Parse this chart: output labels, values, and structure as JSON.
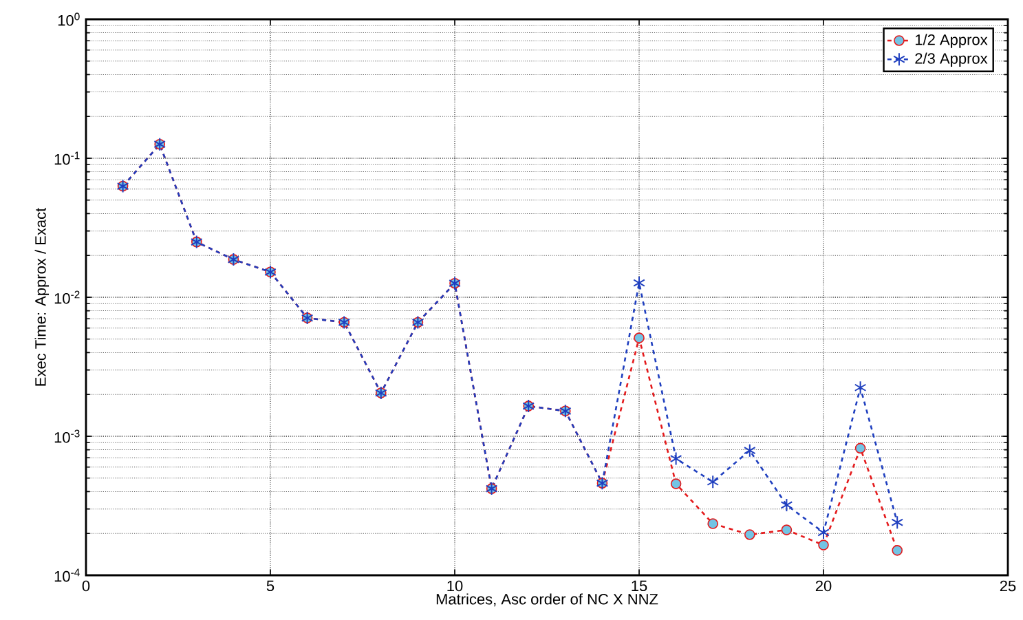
{
  "chart_data": {
    "type": "line",
    "xlabel": "Matrices, Asc order of NC X NNZ",
    "ylabel": "Exec Time: Approx / Exact",
    "log": "y",
    "grid": true,
    "legend": "top right",
    "x": [
      1,
      2,
      3,
      4,
      5,
      6,
      7,
      8,
      9,
      10,
      11,
      12,
      13,
      14,
      15,
      16,
      17,
      18,
      19,
      20,
      21,
      22
    ],
    "xlim": [
      0,
      25
    ],
    "xticks": [
      0,
      5,
      10,
      15,
      20,
      25
    ],
    "ylim": [
      0.0001,
      1
    ],
    "yticks": [
      {
        "value": 0.0001,
        "label": "10$^{-4}$"
      },
      {
        "value": 0.001,
        "label": "10$^{-3}$"
      },
      {
        "value": 0.01,
        "label": "10$^{-2}$"
      },
      {
        "value": 0.1,
        "label": "10$^{-1}$"
      },
      {
        "value": 1,
        "label": "10$^{0}$"
      }
    ],
    "series": [
      {
        "name": "1/2 Approx",
        "color": "#e41a1c",
        "marker": "circle",
        "line_style": "dashed",
        "values": [
          0.063,
          0.126,
          0.025,
          0.0187,
          0.0152,
          0.0071,
          0.0066,
          0.00205,
          0.0066,
          0.0126,
          0.00042,
          0.00165,
          0.00152,
          0.00046,
          0.0051,
          0.000455,
          0.000235,
          0.000196,
          0.000212,
          0.000165,
          0.00082,
          0.000151
        ]
      },
      {
        "name": "2/3 Approx",
        "color": "#1f3fbf",
        "marker": "cross",
        "line_style": "dashed",
        "values": [
          0.063,
          0.126,
          0.025,
          0.0187,
          0.0152,
          0.0071,
          0.0066,
          0.00205,
          0.0066,
          0.0126,
          0.00042,
          0.00165,
          0.00152,
          0.00046,
          0.0127,
          0.00069,
          0.00047,
          0.00079,
          0.00032,
          0.000203,
          0.00224,
          0.00024
        ]
      }
    ]
  }
}
